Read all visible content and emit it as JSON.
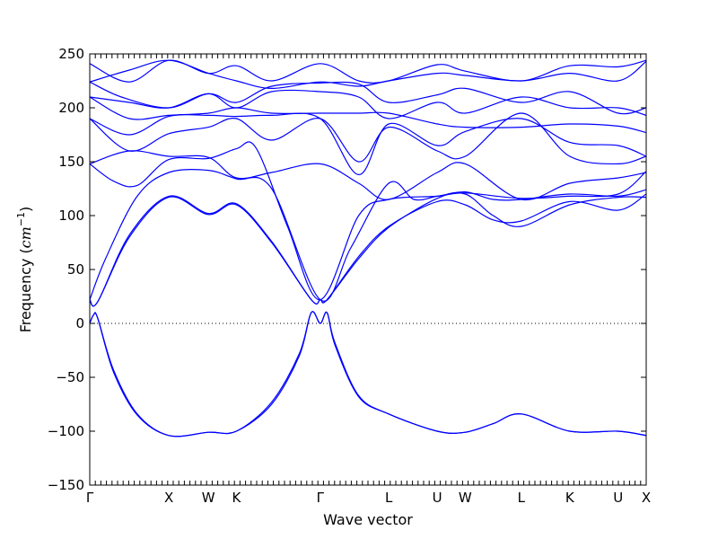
{
  "chart_data": {
    "type": "line",
    "xlabel": "Wave vector",
    "ylabel_text": "Frequency (",
    "ylabel_unit": "cm",
    "ylabel_exp": "−1",
    "ylabel_close": ")",
    "ylim": [
      -150,
      250
    ],
    "yticks": [
      -150,
      -100,
      -50,
      0,
      50,
      100,
      150,
      200,
      250
    ],
    "ytick_labels": [
      "−150",
      "−100",
      "−50",
      "0",
      "50",
      "100",
      "150",
      "200",
      "250"
    ],
    "high_symmetry_points": [
      {
        "label": "Γ",
        "x": 0.0
      },
      {
        "label": "X",
        "x": 1.0
      },
      {
        "label": "W",
        "x": 1.5
      },
      {
        "label": "K",
        "x": 1.854
      },
      {
        "label": "Γ",
        "x": 2.914
      },
      {
        "label": "L",
        "x": 3.78
      },
      {
        "label": "U",
        "x": 4.393
      },
      {
        "label": "W",
        "x": 4.747
      },
      {
        "label": "L",
        "x": 5.455
      },
      {
        "label": "K",
        "x": 6.068
      },
      {
        "label": "U",
        "x": 6.681
      },
      {
        "label": "X",
        "x": 7.035
      }
    ],
    "zero_line": true,
    "line_color": "#0000ff",
    "series": [
      {
        "values": [
          [
            0,
            0
          ],
          [
            0.05,
            8
          ],
          [
            0.1,
            5
          ],
          [
            0.3,
            -45
          ],
          [
            0.6,
            -85
          ],
          [
            1.0,
            -104
          ],
          [
            1.5,
            -101
          ],
          [
            1.854,
            -100
          ],
          [
            2.3,
            -75
          ],
          [
            2.65,
            -30
          ],
          [
            2.8,
            10
          ],
          [
            2.914,
            0
          ],
          [
            3.0,
            10
          ],
          [
            3.1,
            -20
          ],
          [
            3.4,
            -68
          ],
          [
            3.78,
            -84
          ],
          [
            4.393,
            -100
          ],
          [
            4.747,
            -101
          ],
          [
            5.1,
            -93
          ],
          [
            5.455,
            -84
          ],
          [
            6.068,
            -100
          ],
          [
            6.681,
            -100
          ],
          [
            7.035,
            -104
          ]
        ]
      },
      {
        "values": [
          [
            0,
            0
          ],
          [
            0.05,
            8
          ],
          [
            0.1,
            5
          ],
          [
            0.3,
            -43
          ],
          [
            0.6,
            -84
          ],
          [
            1.0,
            -104
          ],
          [
            1.5,
            -101
          ],
          [
            1.854,
            -100
          ],
          [
            2.3,
            -73
          ],
          [
            2.65,
            -28
          ],
          [
            2.8,
            10
          ],
          [
            2.914,
            0
          ],
          [
            3.0,
            10
          ],
          [
            3.1,
            -18
          ],
          [
            3.4,
            -67
          ],
          [
            3.78,
            -84
          ],
          [
            4.393,
            -100
          ],
          [
            4.747,
            -101
          ],
          [
            5.1,
            -93
          ],
          [
            5.455,
            -84
          ],
          [
            6.068,
            -100
          ],
          [
            6.681,
            -100
          ],
          [
            7.035,
            -104
          ]
        ]
      },
      {
        "values": [
          [
            0,
            22
          ],
          [
            0.1,
            20
          ],
          [
            0.5,
            80
          ],
          [
            1.0,
            117
          ],
          [
            1.5,
            101
          ],
          [
            1.854,
            110
          ],
          [
            2.3,
            75
          ],
          [
            2.8,
            22
          ],
          [
            2.914,
            22
          ],
          [
            3.0,
            22
          ],
          [
            3.4,
            60
          ],
          [
            3.78,
            89
          ],
          [
            4.393,
            116
          ],
          [
            4.747,
            120
          ],
          [
            5.1,
            100
          ],
          [
            5.455,
            90
          ],
          [
            6.068,
            110
          ],
          [
            6.681,
            117
          ],
          [
            7.035,
            117
          ]
        ]
      },
      {
        "values": [
          [
            0,
            22
          ],
          [
            0.1,
            20
          ],
          [
            0.5,
            82
          ],
          [
            1.0,
            118
          ],
          [
            1.5,
            102
          ],
          [
            1.854,
            111
          ],
          [
            2.3,
            76
          ],
          [
            2.8,
            22
          ],
          [
            2.914,
            22
          ],
          [
            3.0,
            22
          ],
          [
            3.4,
            62
          ],
          [
            3.78,
            90
          ],
          [
            4.393,
            113
          ],
          [
            4.747,
            110
          ],
          [
            5.1,
            96
          ],
          [
            5.455,
            95
          ],
          [
            6.068,
            113
          ],
          [
            6.681,
            105
          ],
          [
            7.035,
            120
          ]
        ]
      },
      {
        "values": [
          [
            0,
            22
          ],
          [
            0.2,
            60
          ],
          [
            0.6,
            118
          ],
          [
            1.0,
            140
          ],
          [
            1.5,
            142
          ],
          [
            1.854,
            134
          ],
          [
            2.3,
            125
          ],
          [
            2.914,
            22
          ],
          [
            3.3,
            70
          ],
          [
            3.78,
            130
          ],
          [
            4.1,
            115
          ],
          [
            4.393,
            118
          ],
          [
            4.747,
            122
          ],
          [
            5.1,
            115
          ],
          [
            5.455,
            115
          ],
          [
            6.068,
            120
          ],
          [
            6.681,
            118
          ],
          [
            7.035,
            124
          ]
        ]
      },
      {
        "values": [
          [
            0,
            148
          ],
          [
            0.3,
            132
          ],
          [
            0.6,
            128
          ],
          [
            1.0,
            152
          ],
          [
            1.5,
            153
          ],
          [
            1.854,
            162
          ],
          [
            2.1,
            163
          ],
          [
            2.5,
            90
          ],
          [
            2.914,
            22
          ],
          [
            3.4,
            100
          ],
          [
            3.78,
            115
          ],
          [
            4.393,
            118
          ],
          [
            4.747,
            121
          ],
          [
            5.455,
            116
          ],
          [
            6.068,
            118
          ],
          [
            6.681,
            120
          ],
          [
            7.035,
            141
          ]
        ]
      },
      {
        "values": [
          [
            0,
            148
          ],
          [
            0.5,
            160
          ],
          [
            1.0,
            155
          ],
          [
            1.5,
            154
          ],
          [
            1.854,
            135
          ],
          [
            2.3,
            140
          ],
          [
            2.914,
            148
          ],
          [
            3.4,
            130
          ],
          [
            3.78,
            115
          ],
          [
            4.393,
            140
          ],
          [
            4.747,
            148
          ],
          [
            5.455,
            115
          ],
          [
            6.068,
            130
          ],
          [
            6.681,
            135
          ],
          [
            7.035,
            140
          ]
        ]
      },
      {
        "values": [
          [
            0,
            190
          ],
          [
            0.5,
            160
          ],
          [
            1.0,
            176
          ],
          [
            1.5,
            182
          ],
          [
            1.854,
            190
          ],
          [
            2.3,
            170
          ],
          [
            2.914,
            190
          ],
          [
            3.4,
            150
          ],
          [
            3.78,
            182
          ],
          [
            4.393,
            160
          ],
          [
            4.747,
            155
          ],
          [
            5.455,
            195
          ],
          [
            6.068,
            155
          ],
          [
            6.681,
            148
          ],
          [
            7.035,
            155
          ]
        ]
      },
      {
        "values": [
          [
            0,
            190
          ],
          [
            0.5,
            175
          ],
          [
            1.0,
            192
          ],
          [
            1.5,
            193
          ],
          [
            1.854,
            192
          ],
          [
            2.3,
            193
          ],
          [
            2.914,
            190
          ],
          [
            3.4,
            138
          ],
          [
            3.78,
            185
          ],
          [
            4.393,
            165
          ],
          [
            4.747,
            178
          ],
          [
            5.455,
            190
          ],
          [
            6.068,
            168
          ],
          [
            6.681,
            165
          ],
          [
            7.035,
            155
          ]
        ]
      },
      {
        "values": [
          [
            0,
            210
          ],
          [
            0.5,
            190
          ],
          [
            1.0,
            193
          ],
          [
            1.5,
            195
          ],
          [
            1.854,
            200
          ],
          [
            2.3,
            195
          ],
          [
            2.914,
            195
          ],
          [
            3.4,
            195
          ],
          [
            3.78,
            195
          ],
          [
            4.393,
            185
          ],
          [
            4.747,
            182
          ],
          [
            5.455,
            182
          ],
          [
            6.068,
            185
          ],
          [
            6.681,
            183
          ],
          [
            7.035,
            177
          ]
        ]
      },
      {
        "values": [
          [
            0,
            210
          ],
          [
            0.5,
            205
          ],
          [
            1.0,
            200
          ],
          [
            1.5,
            213
          ],
          [
            1.854,
            200
          ],
          [
            2.3,
            215
          ],
          [
            2.914,
            215
          ],
          [
            3.4,
            210
          ],
          [
            3.78,
            190
          ],
          [
            4.393,
            205
          ],
          [
            4.747,
            195
          ],
          [
            5.455,
            210
          ],
          [
            6.068,
            200
          ],
          [
            6.681,
            200
          ],
          [
            7.035,
            193
          ]
        ]
      },
      {
        "values": [
          [
            0,
            224
          ],
          [
            0.4,
            210
          ],
          [
            1.0,
            200
          ],
          [
            1.5,
            213
          ],
          [
            1.854,
            205
          ],
          [
            2.3,
            220
          ],
          [
            2.914,
            223
          ],
          [
            3.4,
            222
          ],
          [
            3.78,
            205
          ],
          [
            4.393,
            212
          ],
          [
            4.747,
            218
          ],
          [
            5.455,
            205
          ],
          [
            6.068,
            215
          ],
          [
            6.681,
            195
          ],
          [
            7.035,
            200
          ]
        ]
      },
      {
        "values": [
          [
            0,
            224
          ],
          [
            0.5,
            235
          ],
          [
            1.0,
            244
          ],
          [
            1.5,
            232
          ],
          [
            1.854,
            225
          ],
          [
            2.3,
            218
          ],
          [
            2.914,
            224
          ],
          [
            3.4,
            220
          ],
          [
            3.78,
            225
          ],
          [
            4.393,
            232
          ],
          [
            4.747,
            230
          ],
          [
            5.455,
            225
          ],
          [
            6.068,
            232
          ],
          [
            6.681,
            225
          ],
          [
            7.035,
            243
          ]
        ]
      },
      {
        "values": [
          [
            0,
            241
          ],
          [
            0.5,
            224
          ],
          [
            1.0,
            244
          ],
          [
            1.5,
            232
          ],
          [
            1.854,
            239
          ],
          [
            2.3,
            225
          ],
          [
            2.914,
            241
          ],
          [
            3.4,
            225
          ],
          [
            3.78,
            225
          ],
          [
            4.393,
            240
          ],
          [
            4.747,
            234
          ],
          [
            5.455,
            225
          ],
          [
            6.068,
            239
          ],
          [
            6.681,
            238
          ],
          [
            7.035,
            244
          ]
        ]
      }
    ]
  }
}
